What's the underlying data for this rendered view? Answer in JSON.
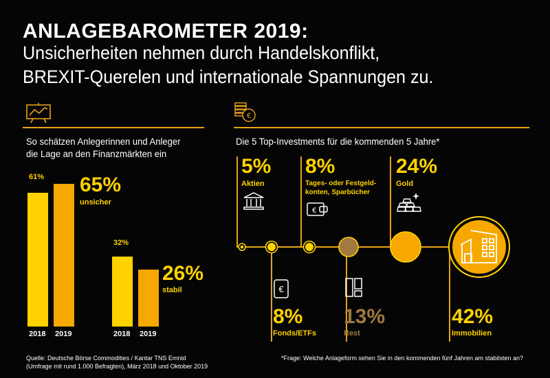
{
  "header": {
    "title": "ANLAGEBAROMETER 2019:",
    "subtitle_line1": "Unsicherheiten nehmen durch Handelskonflikt,",
    "subtitle_line2": "BREXIT-Querelen und internationale Spannungen zu."
  },
  "left_panel": {
    "heading_line1": "So schätzen Anlegerinnen und Anleger",
    "heading_line2": "die Lage an den Finanzmärkten ein",
    "icon": "chart-board-icon"
  },
  "right_panel": {
    "heading": "Die 5 Top-Investments für die kommenden 5 Jahre*",
    "icon": "coins-euro-icon"
  },
  "colors": {
    "bar_2018": "#ffd200",
    "bar_2019": "#f6a800",
    "accent_line": "#e8a317",
    "rest_circle": "#a07a40",
    "rest_text": "#a07a40"
  },
  "chart_data": [
    {
      "type": "bar",
      "categories": [
        "2018",
        "2019"
      ],
      "groups": [
        {
          "label": "unsicher",
          "values": [
            61,
            65
          ],
          "value_labels": [
            "61%",
            "65%"
          ]
        },
        {
          "label": "stabil",
          "values": [
            32,
            26
          ],
          "value_labels": [
            "32%",
            "26%"
          ]
        }
      ],
      "ylim": [
        0,
        70
      ]
    },
    {
      "type": "bubble",
      "items": [
        {
          "label": "Aktien",
          "value": 5,
          "value_label": "5%",
          "icon": "bank-building-icon"
        },
        {
          "label": "Fonds/ETFs",
          "value": 8,
          "value_label": "8%",
          "icon": "euro-document-icon"
        },
        {
          "label": "Tages- oder Festgeld-konten, Sparbücher",
          "label_line1": "Tages- oder Festgeld-",
          "label_line2": "konten, Sparbücher",
          "value": 8,
          "value_label": "8%",
          "icon": "wallet-euro-icon"
        },
        {
          "label": "Rest",
          "value": 13,
          "value_label": "13%",
          "icon": "cards-icon"
        },
        {
          "label": "Gold",
          "value": 24,
          "value_label": "24%",
          "icon": "gold-bars-icon"
        },
        {
          "label": "Immobilien",
          "value": 42,
          "value_label": "42%",
          "icon": "house-icon"
        }
      ]
    }
  ],
  "footer": {
    "source_line1": "Quelle: Deutsche Börse Commodities / Kantar TNS Emnid",
    "source_line2": "(Umfrage mit rund 1.000 Befragten), März 2018 und Oktober 2019",
    "footnote": "*Frage: Welche Anlageform sehen Sie in den kommenden fünf Jahren am stabilsten an?"
  }
}
